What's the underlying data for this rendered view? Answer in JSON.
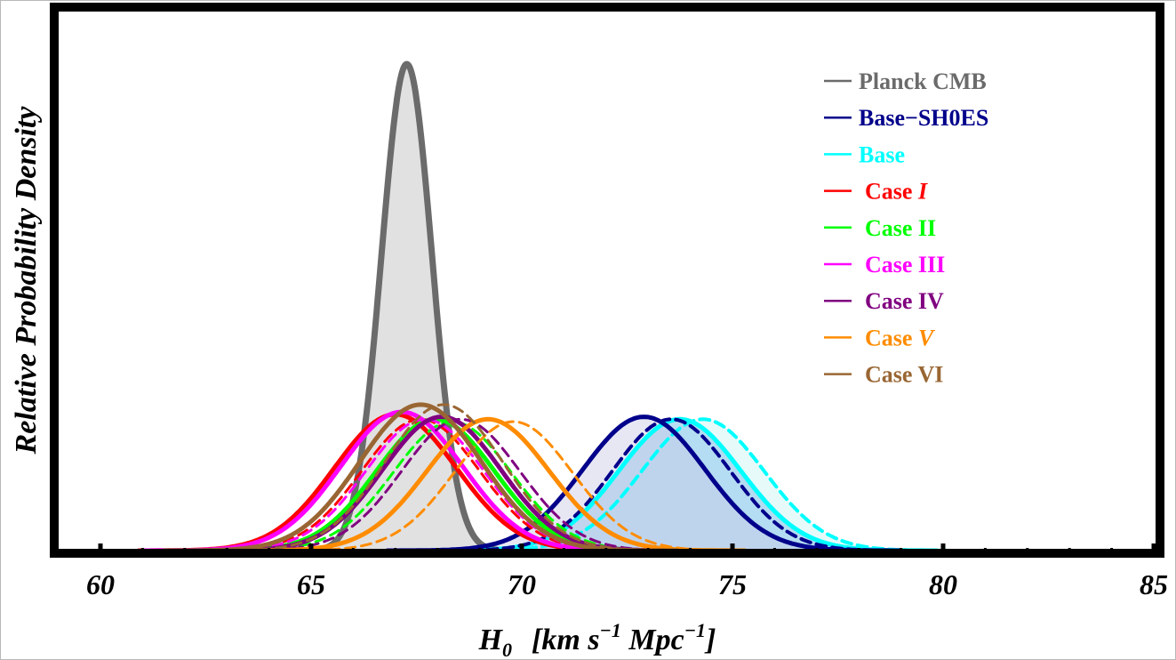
{
  "chart_data": {
    "type": "line",
    "xlabel_symbol": "H",
    "xlabel_sub": "0",
    "xlabel_units_open": "[km s",
    "xlabel_sup1": "−1",
    "xlabel_mid": " Mpc",
    "xlabel_sup2": "−1",
    "xlabel_close": "]",
    "ylabel": "Relative Probability Density",
    "xlim": [
      59,
      85
    ],
    "ylim": [
      0,
      1.1
    ],
    "xticks": [
      {
        "value": 60,
        "label": "60"
      },
      {
        "value": 65,
        "label": "65"
      },
      {
        "value": 70,
        "label": "70"
      },
      {
        "value": 75,
        "label": "75"
      },
      {
        "value": 80,
        "label": "80"
      },
      {
        "value": 85,
        "label": "85"
      }
    ],
    "legend_position": "top-right",
    "legend": [
      {
        "label": "Planck CMB",
        "italic_suffix": "",
        "color": "#6b6b6b"
      },
      {
        "label": "Base−SH0ES",
        "italic_suffix": "",
        "color": "#00008b"
      },
      {
        "label": "Base",
        "italic_suffix": "",
        "color": "#00ffff"
      },
      {
        "label": "Case ",
        "italic_suffix": "I",
        "color": "#ff0000"
      },
      {
        "label": "Case II",
        "italic_suffix": "",
        "color": "#00ff00"
      },
      {
        "label": "Case III",
        "italic_suffix": "",
        "color": "#ff00ff"
      },
      {
        "label": "Case IV",
        "italic_suffix": "",
        "color": "#800080"
      },
      {
        "label": "Case ",
        "italic_suffix": "V",
        "color": "#ff8c00"
      },
      {
        "label": "Case VI",
        "italic_suffix": "",
        "color": "#996633"
      }
    ],
    "series": [
      {
        "name": "Planck CMB",
        "color": "#6b6b6b",
        "style": "solid",
        "width": 7,
        "mean": 67.27,
        "sigma": 0.6,
        "peak": 1.0,
        "fill": "#dcdcdc",
        "fill_opacity": 0.85
      },
      {
        "name": "Base",
        "color": "#00ffff",
        "style": "dashed",
        "width": 4,
        "mean": 74.3,
        "sigma": 1.45,
        "peak": 0.27,
        "fill": "#c8f5f5",
        "fill_opacity": 0.45
      },
      {
        "name": "Base",
        "color": "#00ffff",
        "style": "solid",
        "width": 5,
        "mean": 73.75,
        "sigma": 1.45,
        "peak": 0.27,
        "fill": "#a8d4f0",
        "fill_opacity": 0.8
      },
      {
        "name": "Base−SH0ES",
        "color": "#00008b",
        "style": "dashed",
        "width": 4,
        "mean": 73.55,
        "sigma": 1.4,
        "peak": 0.27,
        "fill": "",
        "fill_opacity": 0
      },
      {
        "name": "Base−SH0ES",
        "color": "#00008b",
        "style": "solid",
        "width": 5,
        "mean": 72.9,
        "sigma": 1.45,
        "peak": 0.275,
        "fill": "#c9c9e6",
        "fill_opacity": 0.45
      },
      {
        "name": "Case I",
        "color": "#ff0000",
        "style": "solid",
        "width": 5,
        "mean": 67.0,
        "sigma": 1.45,
        "peak": 0.28,
        "fill": "",
        "fill_opacity": 0
      },
      {
        "name": "Case I",
        "color": "#ff0000",
        "style": "dashed",
        "width": 3,
        "mean": 67.6,
        "sigma": 1.4,
        "peak": 0.27,
        "fill": "",
        "fill_opacity": 0
      },
      {
        "name": "Case II",
        "color": "#00ff00",
        "style": "solid",
        "width": 5,
        "mean": 67.95,
        "sigma": 1.4,
        "peak": 0.27,
        "fill": "",
        "fill_opacity": 0
      },
      {
        "name": "Case II",
        "color": "#00ff00",
        "style": "dashed",
        "width": 3,
        "mean": 68.35,
        "sigma": 1.4,
        "peak": 0.265,
        "fill": "",
        "fill_opacity": 0
      },
      {
        "name": "Case III",
        "color": "#ff00ff",
        "style": "solid",
        "width": 5,
        "mean": 67.15,
        "sigma": 1.45,
        "peak": 0.285,
        "fill": "",
        "fill_opacity": 0
      },
      {
        "name": "Case III",
        "color": "#ff00ff",
        "style": "dashed",
        "width": 3,
        "mean": 67.7,
        "sigma": 1.4,
        "peak": 0.27,
        "fill": "",
        "fill_opacity": 0
      },
      {
        "name": "Case IV",
        "color": "#800080",
        "style": "solid",
        "width": 5,
        "mean": 68.1,
        "sigma": 1.4,
        "peak": 0.275,
        "fill": "",
        "fill_opacity": 0
      },
      {
        "name": "Case IV",
        "color": "#800080",
        "style": "dashed",
        "width": 3,
        "mean": 68.55,
        "sigma": 1.4,
        "peak": 0.27,
        "fill": "",
        "fill_opacity": 0
      },
      {
        "name": "Case V",
        "color": "#ff8c00",
        "style": "solid",
        "width": 5,
        "mean": 69.2,
        "sigma": 1.45,
        "peak": 0.27,
        "fill": "",
        "fill_opacity": 0
      },
      {
        "name": "Case V",
        "color": "#ff8c00",
        "style": "dashed",
        "width": 3,
        "mean": 69.8,
        "sigma": 1.4,
        "peak": 0.265,
        "fill": "",
        "fill_opacity": 0
      },
      {
        "name": "Case VI",
        "color": "#996633",
        "style": "solid",
        "width": 5,
        "mean": 67.6,
        "sigma": 1.45,
        "peak": 0.3,
        "fill": "",
        "fill_opacity": 0
      },
      {
        "name": "Case VI",
        "color": "#996633",
        "style": "dashed",
        "width": 3,
        "mean": 68.15,
        "sigma": 1.4,
        "peak": 0.3,
        "fill": "",
        "fill_opacity": 0
      }
    ]
  }
}
